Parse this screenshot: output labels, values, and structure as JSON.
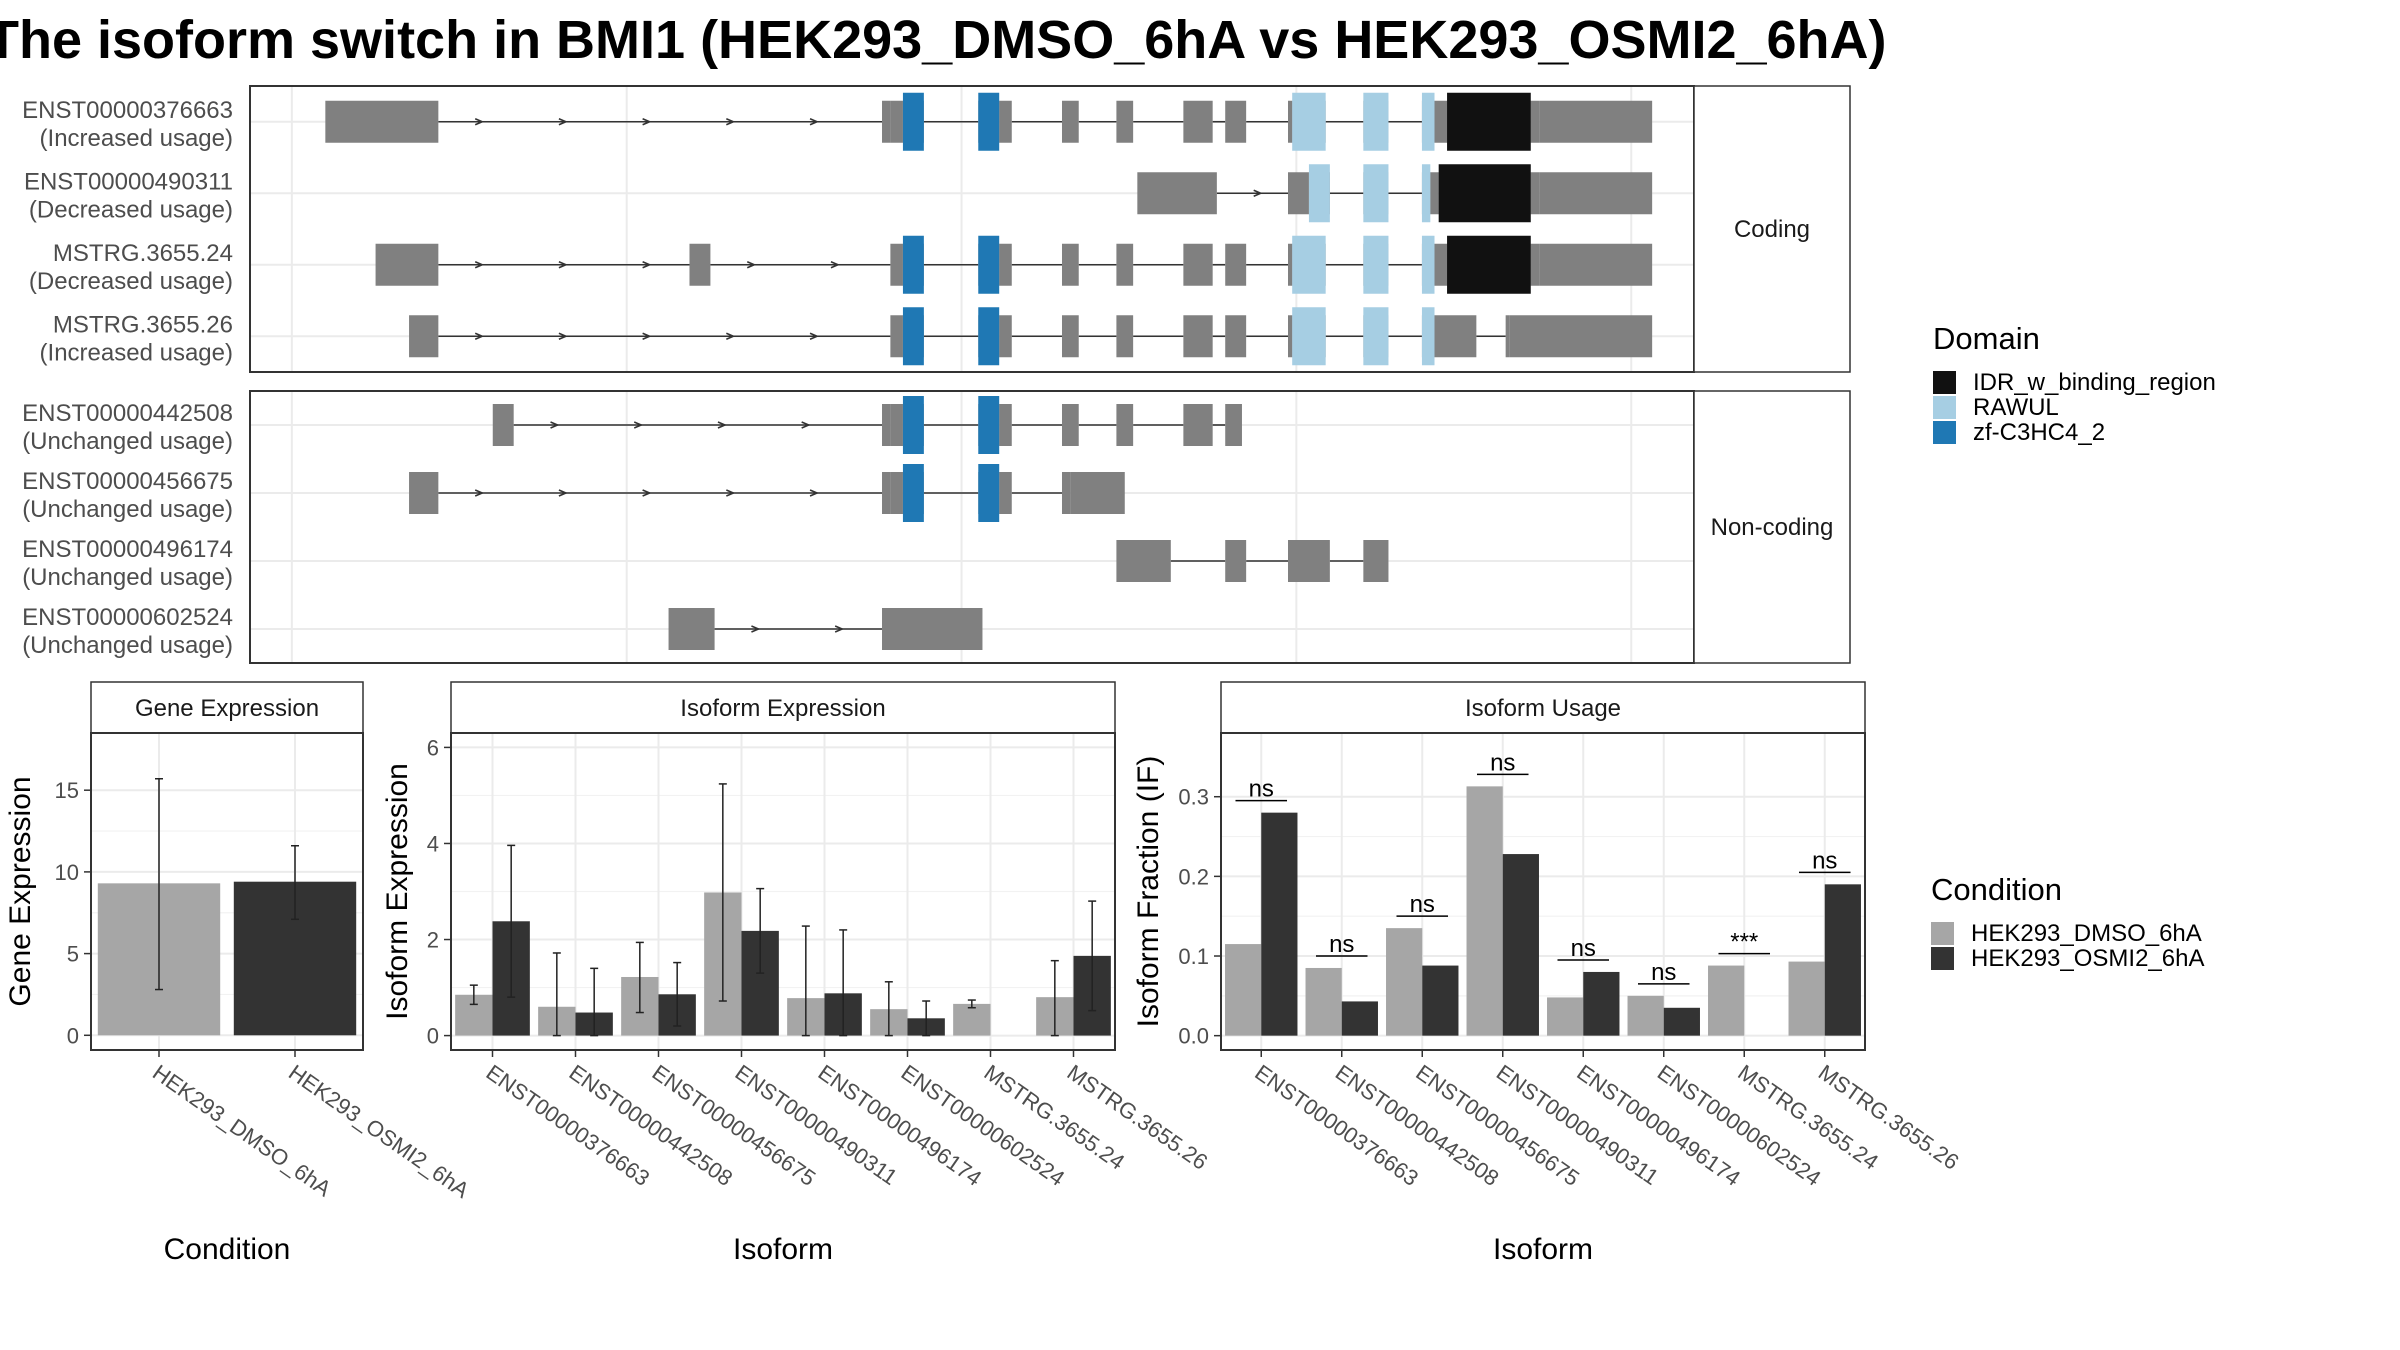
{
  "title": "The isoform switch in BMI1 (HEK293_DMSO_6hA vs HEK293_OSMI2_6hA)",
  "colors": {
    "exon": "#808080",
    "IDR_w_binding_region": "#111111",
    "RAWUL": "#a6cee3",
    "zf-C3HC4_2": "#1f78b4",
    "HEK293_DMSO_6hA": "#a6a6a6",
    "HEK293_OSMI2_6hA": "#333333"
  },
  "legends": {
    "domain": {
      "title": "Domain",
      "items": [
        "IDR_w_binding_region",
        "RAWUL",
        "zf-C3HC4_2"
      ]
    },
    "condition": {
      "title": "Condition",
      "items": [
        "HEK293_DMSO_6hA",
        "HEK293_OSMI2_6hA"
      ]
    }
  },
  "chart_data": [
    {
      "type": "isoform-structure",
      "facets": [
        {
          "label": "Coding",
          "transcripts": [
            {
              "id": "ENST00000376663",
              "usage": "(Increased usage)",
              "exons": [
                [
                  0.3,
                  3.0
                ],
                [
                  13.6,
                  13.8
                ],
                [
                  13.8,
                  14.1
                ],
                [
                  14.1,
                  14.6
                ],
                [
                  15.9,
                  16.4
                ],
                [
                  16.4,
                  16.7
                ],
                [
                  17.9,
                  18.3
                ],
                [
                  19.2,
                  19.6
                ],
                [
                  20.8,
                  21.5
                ],
                [
                  21.8,
                  22.3
                ],
                [
                  23.3,
                  23.4
                ],
                [
                  23.4,
                  24.2
                ],
                [
                  25.1,
                  25.7
                ],
                [
                  26.5,
                  26.7
                ],
                [
                  26.7,
                  26.8
                ],
                [
                  26.8,
                  27.1
                ],
                [
                  27.1,
                  29.1
                ],
                [
                  29.1,
                  29.3
                ],
                [
                  29.3,
                  32.0
                ]
              ],
              "domains": [
                [
                  14.1,
                  14.6,
                  "zf-C3HC4_2"
                ],
                [
                  15.9,
                  16.4,
                  "zf-C3HC4_2"
                ],
                [
                  23.4,
                  24.2,
                  "RAWUL"
                ],
                [
                  25.1,
                  25.7,
                  "RAWUL"
                ],
                [
                  26.5,
                  26.8,
                  "RAWUL"
                ],
                [
                  27.1,
                  29.1,
                  "IDR_w_binding_region"
                ]
              ]
            },
            {
              "id": "ENST00000490311",
              "usage": "(Decreased usage)",
              "exons": [
                [
                  19.7,
                  21.6
                ],
                [
                  23.3,
                  23.8
                ],
                [
                  23.8,
                  24.3
                ],
                [
                  25.1,
                  25.7
                ],
                [
                  26.5,
                  26.7
                ],
                [
                  26.7,
                  26.9
                ],
                [
                  26.9,
                  29.1
                ],
                [
                  29.1,
                  29.3
                ],
                [
                  29.3,
                  32.0
                ]
              ],
              "domains": [
                [
                  23.8,
                  24.3,
                  "RAWUL"
                ],
                [
                  25.1,
                  25.7,
                  "RAWUL"
                ],
                [
                  26.5,
                  26.7,
                  "RAWUL"
                ],
                [
                  26.9,
                  29.1,
                  "IDR_w_binding_region"
                ]
              ]
            },
            {
              "id": "MSTRG.3655.24",
              "usage": "(Decreased usage)",
              "exons": [
                [
                  1.5,
                  3.0
                ],
                [
                  9.0,
                  9.5
                ],
                [
                  13.8,
                  14.1
                ],
                [
                  14.1,
                  14.6
                ],
                [
                  15.9,
                  16.4
                ],
                [
                  16.4,
                  16.7
                ],
                [
                  17.9,
                  18.3
                ],
                [
                  19.2,
                  19.6
                ],
                [
                  20.8,
                  21.5
                ],
                [
                  21.8,
                  22.3
                ],
                [
                  23.3,
                  23.4
                ],
                [
                  23.4,
                  24.2
                ],
                [
                  25.1,
                  25.7
                ],
                [
                  26.5,
                  26.7
                ],
                [
                  26.7,
                  26.8
                ],
                [
                  26.8,
                  27.1
                ],
                [
                  27.1,
                  29.1
                ],
                [
                  29.1,
                  29.3
                ],
                [
                  29.3,
                  32.0
                ]
              ],
              "domains": [
                [
                  14.1,
                  14.6,
                  "zf-C3HC4_2"
                ],
                [
                  15.9,
                  16.4,
                  "zf-C3HC4_2"
                ],
                [
                  23.4,
                  24.2,
                  "RAWUL"
                ],
                [
                  25.1,
                  25.7,
                  "RAWUL"
                ],
                [
                  26.5,
                  26.8,
                  "RAWUL"
                ],
                [
                  27.1,
                  29.1,
                  "IDR_w_binding_region"
                ]
              ]
            },
            {
              "id": "MSTRG.3655.26",
              "usage": "(Increased usage)",
              "exons": [
                [
                  2.3,
                  3.0
                ],
                [
                  13.8,
                  14.1
                ],
                [
                  14.1,
                  14.6
                ],
                [
                  15.9,
                  16.4
                ],
                [
                  16.4,
                  16.7
                ],
                [
                  17.9,
                  18.3
                ],
                [
                  19.2,
                  19.6
                ],
                [
                  20.8,
                  21.5
                ],
                [
                  21.8,
                  22.3
                ],
                [
                  23.3,
                  23.4
                ],
                [
                  23.4,
                  24.2
                ],
                [
                  25.1,
                  25.7
                ],
                [
                  26.5,
                  26.7
                ],
                [
                  26.7,
                  26.8
                ],
                [
                  26.8,
                  27.8
                ],
                [
                  28.5,
                  28.6
                ],
                [
                  28.6,
                  32.0
                ]
              ],
              "domains": [
                [
                  14.1,
                  14.6,
                  "zf-C3HC4_2"
                ],
                [
                  15.9,
                  16.4,
                  "zf-C3HC4_2"
                ],
                [
                  23.4,
                  24.2,
                  "RAWUL"
                ],
                [
                  25.1,
                  25.7,
                  "RAWUL"
                ],
                [
                  26.5,
                  26.8,
                  "RAWUL"
                ]
              ]
            }
          ]
        },
        {
          "label": "Non-coding",
          "transcripts": [
            {
              "id": "ENST00000442508",
              "usage": "(Unchanged usage)",
              "exons": [
                [
                  4.3,
                  4.8
                ],
                [
                  13.6,
                  13.8
                ],
                [
                  13.8,
                  14.1
                ],
                [
                  14.1,
                  14.6
                ],
                [
                  15.9,
                  16.4
                ],
                [
                  16.4,
                  16.7
                ],
                [
                  17.9,
                  18.3
                ],
                [
                  19.2,
                  19.6
                ],
                [
                  20.8,
                  21.5
                ],
                [
                  21.8,
                  22.2
                ]
              ],
              "domains": [
                [
                  14.1,
                  14.6,
                  "zf-C3HC4_2"
                ],
                [
                  15.9,
                  16.4,
                  "zf-C3HC4_2"
                ]
              ]
            },
            {
              "id": "ENST00000456675",
              "usage": "(Unchanged usage)",
              "exons": [
                [
                  2.3,
                  3.0
                ],
                [
                  13.6,
                  13.8
                ],
                [
                  13.8,
                  14.1
                ],
                [
                  14.1,
                  14.6
                ],
                [
                  15.9,
                  16.4
                ],
                [
                  16.4,
                  16.7
                ],
                [
                  17.9,
                  18.1
                ],
                [
                  18.1,
                  19.4
                ]
              ],
              "domains": [
                [
                  14.1,
                  14.6,
                  "zf-C3HC4_2"
                ],
                [
                  15.9,
                  16.4,
                  "zf-C3HC4_2"
                ]
              ]
            },
            {
              "id": "ENST00000496174",
              "usage": "(Unchanged usage)",
              "exons": [
                [
                  19.2,
                  20.5
                ],
                [
                  21.8,
                  22.3
                ],
                [
                  23.3,
                  24.3
                ],
                [
                  25.1,
                  25.7
                ]
              ],
              "domains": []
            },
            {
              "id": "ENST00000602524",
              "usage": "(Unchanged usage)",
              "exons": [
                [
                  8.5,
                  9.6
                ],
                [
                  13.6,
                  16.0
                ]
              ],
              "domains": []
            }
          ]
        }
      ],
      "xlim": [
        -1.5,
        33.0
      ]
    },
    {
      "type": "bar",
      "title": "Gene Expression",
      "xlabel": "Condition",
      "ylabel": "Gene Expression",
      "categories": [
        "HEK293_DMSO_6hA",
        "HEK293_OSMI2_6hA"
      ],
      "values": [
        9.3,
        9.4
      ],
      "errors": [
        [
          2.8,
          15.7
        ],
        [
          7.1,
          11.6
        ]
      ],
      "ylim": [
        -0.9,
        18.5
      ],
      "yticks": [
        0,
        5,
        10,
        15
      ]
    },
    {
      "type": "bar",
      "title": "Isoform Expression",
      "xlabel": "Isoform",
      "ylabel": "Isoform Expression",
      "categories": [
        "ENST00000376663",
        "ENST00000442508",
        "ENST00000456675",
        "ENST00000490311",
        "ENST00000496174",
        "ENST00000602524",
        "MSTRG.3655.24",
        "MSTRG.3655.26"
      ],
      "series": [
        {
          "name": "HEK293_DMSO_6hA",
          "values": [
            0.85,
            0.6,
            1.22,
            2.98,
            0.78,
            0.55,
            0.66,
            0.8
          ],
          "errors": [
            [
              0.65,
              1.05
            ],
            [
              0.0,
              1.72
            ],
            [
              0.48,
              1.94
            ],
            [
              0.72,
              5.24
            ],
            [
              0.0,
              2.28
            ],
            [
              0.0,
              1.12
            ],
            [
              0.58,
              0.74
            ],
            [
              0.0,
              1.56
            ]
          ]
        },
        {
          "name": "HEK293_OSMI2_6hA",
          "values": [
            2.38,
            0.48,
            0.86,
            2.18,
            0.88,
            0.36,
            0.0,
            1.66
          ],
          "errors": [
            [
              0.8,
              3.96
            ],
            [
              0.0,
              1.4
            ],
            [
              0.2,
              1.52
            ],
            [
              1.3,
              3.06
            ],
            [
              0.0,
              2.2
            ],
            [
              0.0,
              0.72
            ],
            [
              0.0,
              0.0
            ],
            [
              0.52,
              2.8
            ]
          ]
        }
      ],
      "ylim": [
        -0.3,
        6.3
      ],
      "yticks": [
        0,
        2,
        4,
        6
      ]
    },
    {
      "type": "bar",
      "title": "Isoform Usage",
      "xlabel": "Isoform",
      "ylabel": "Isoform Fraction (IF)",
      "categories": [
        "ENST00000376663",
        "ENST00000442508",
        "ENST00000456675",
        "ENST00000490311",
        "ENST00000496174",
        "ENST00000602524",
        "MSTRG.3655.24",
        "MSTRG.3655.26"
      ],
      "series": [
        {
          "name": "HEK293_DMSO_6hA",
          "values": [
            0.115,
            0.085,
            0.135,
            0.313,
            0.048,
            0.05,
            0.088,
            0.093
          ]
        },
        {
          "name": "HEK293_OSMI2_6hA",
          "values": [
            0.28,
            0.043,
            0.088,
            0.228,
            0.08,
            0.035,
            0.0,
            0.19
          ]
        }
      ],
      "significance": [
        "ns",
        "ns",
        "ns",
        "ns",
        "ns",
        "ns",
        "***",
        "ns"
      ],
      "ylim": [
        -0.018,
        0.38
      ],
      "yticks": [
        0.0,
        0.1,
        0.2,
        0.3
      ],
      "ytick_labels": [
        "0.0",
        "0.1",
        "0.2",
        "0.3"
      ]
    }
  ]
}
